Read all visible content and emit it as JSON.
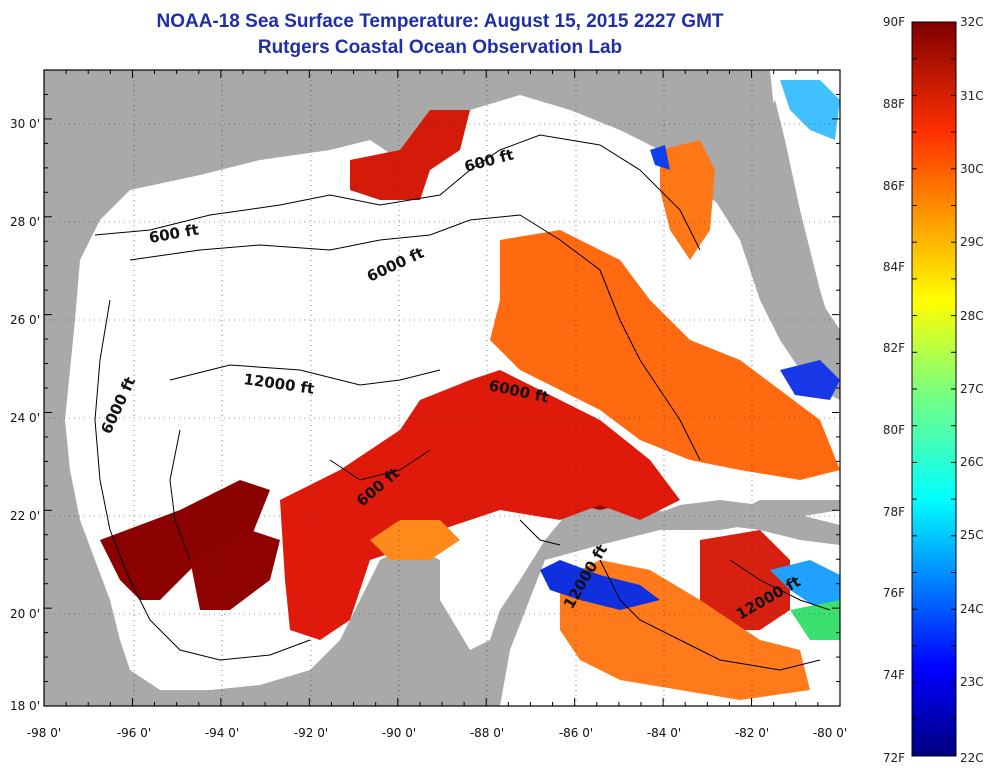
{
  "title": "NOAA-18 Sea Surface Temperature:  August 15, 2015 2227 GMT",
  "subtitle": "Rutgers Coastal Ocean Observation Lab",
  "colors": {
    "land": "#a9a9a9",
    "no_data": "#ffffff",
    "frame": "#000000",
    "title": "#1f2fa8"
  },
  "axes": {
    "lon_range": [
      -98,
      -80
    ],
    "lat_range": [
      18,
      31
    ],
    "x_ticks": [
      "-98 0'",
      "-96 0'",
      "-94 0'",
      "-92 0'",
      "-90 0'",
      "-88 0'",
      "-86 0'",
      "-84 0'",
      "-82 0'",
      "-80 0'"
    ],
    "y_ticks": [
      "18 0'",
      "20 0'",
      "22 0'",
      "24 0'",
      "26 0'",
      "28 0'",
      "30 0'"
    ],
    "grid": "dotted"
  },
  "contour_labels": [
    {
      "text": "600 ft"
    },
    {
      "text": "600 ft"
    },
    {
      "text": "6000 ft"
    },
    {
      "text": "12000 ft"
    },
    {
      "text": "6000 ft"
    },
    {
      "text": "6000 ft"
    },
    {
      "text": "600 ft"
    },
    {
      "text": "12000 ft"
    },
    {
      "text": "12000 ft"
    }
  ],
  "colorbar": {
    "f_labels": [
      "90F",
      "88F",
      "86F",
      "84F",
      "82F",
      "80F",
      "78F",
      "76F",
      "74F",
      "72F"
    ],
    "c_labels": [
      "32C",
      "31C",
      "30C",
      "29C",
      "28C",
      "27C",
      "26C",
      "25C",
      "24C",
      "23C",
      "22C"
    ],
    "range_f": [
      72,
      90
    ],
    "range_c": [
      22,
      32
    ],
    "colormap": "jet"
  }
}
